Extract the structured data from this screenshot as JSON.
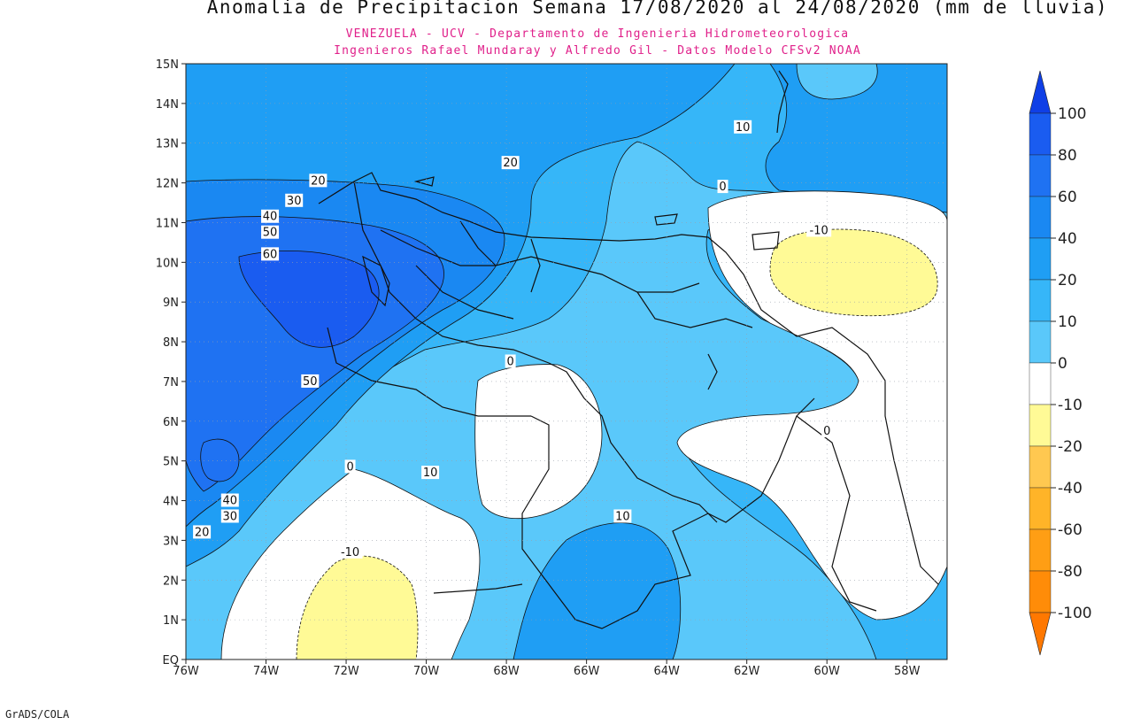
{
  "header": {
    "title": "Anomalia de Precipitacion Semana 17/08/2020 al 24/08/2020 (mm de lluvia)",
    "subtitle1": "VENEZUELA - UCV - Departamento de Ingenieria Hidrometeorologica",
    "subtitle2": "Ingenieros Rafael Mundaray y Alfredo Gil - Datos Modelo CFSv2 NOAA"
  },
  "footer": {
    "credit": "GrADS/COLA"
  },
  "axes": {
    "lat_labels": [
      "15N",
      "14N",
      "13N",
      "12N",
      "11N",
      "10N",
      "9N",
      "8N",
      "7N",
      "6N",
      "5N",
      "4N",
      "3N",
      "2N",
      "1N",
      "EQ"
    ],
    "lon_labels": [
      "76W",
      "74W",
      "72W",
      "70W",
      "68W",
      "66W",
      "64W",
      "62W",
      "60W",
      "58W"
    ]
  },
  "contour_labels": [
    {
      "text": "20",
      "lon": -72.7,
      "lat": 12.05
    },
    {
      "text": "30",
      "lon": -73.3,
      "lat": 11.55
    },
    {
      "text": "40",
      "lon": -73.9,
      "lat": 11.15
    },
    {
      "text": "50",
      "lon": -73.9,
      "lat": 10.75
    },
    {
      "text": "60",
      "lon": -73.9,
      "lat": 10.2
    },
    {
      "text": "20",
      "lon": -67.9,
      "lat": 12.5
    },
    {
      "text": "10",
      "lon": -62.1,
      "lat": 13.4
    },
    {
      "text": "0",
      "lon": -62.6,
      "lat": 11.9
    },
    {
      "text": "-10",
      "lon": -60.2,
      "lat": 10.8
    },
    {
      "text": "0",
      "lon": -67.9,
      "lat": 7.5
    },
    {
      "text": "50",
      "lon": -72.9,
      "lat": 7.0
    },
    {
      "text": "0",
      "lon": -60.0,
      "lat": 5.75
    },
    {
      "text": "0",
      "lon": -71.9,
      "lat": 4.85
    },
    {
      "text": "10",
      "lon": -69.9,
      "lat": 4.7
    },
    {
      "text": "40",
      "lon": -74.9,
      "lat": 4.0
    },
    {
      "text": "30",
      "lon": -74.9,
      "lat": 3.6
    },
    {
      "text": "20",
      "lon": -75.6,
      "lat": 3.2
    },
    {
      "text": "-10",
      "lon": -71.9,
      "lat": 2.7
    },
    {
      "text": "10",
      "lon": -65.1,
      "lat": 3.6
    }
  ],
  "colorbar": {
    "labels": [
      "100",
      "80",
      "60",
      "40",
      "20",
      "10",
      "0",
      "-10",
      "-20",
      "-40",
      "-60",
      "-80",
      "-100"
    ],
    "colors": [
      "#0f3fe6",
      "#1a5cf0",
      "#1f72f2",
      "#1a88f2",
      "#1f9ef4",
      "#36b6f8",
      "#5ac8fa",
      "#ffffff",
      "#fffa96",
      "#ffc850",
      "#ffb428",
      "#ff9e14",
      "#ff8c08",
      "#ff7800"
    ]
  },
  "map": {
    "region": "Venezuela",
    "lon_range": [
      -76,
      -57
    ],
    "lat_range": [
      0,
      15
    ],
    "field": "precipitation anomaly (mm)"
  }
}
